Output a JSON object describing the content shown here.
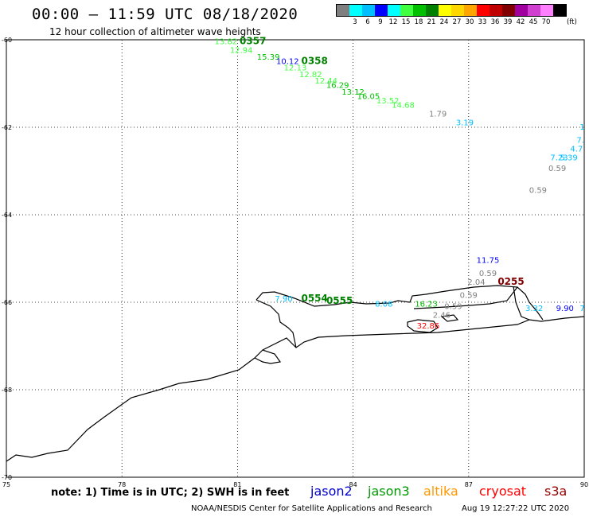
{
  "header": {
    "title": "00:00 – 11:59 UTC 08/18/2020",
    "subtitle": "12 hour collection of altimeter wave heights"
  },
  "legend": {
    "unit": "(ft)",
    "bins": [
      {
        "label": "",
        "color": "#7f7f7f"
      },
      {
        "label": "3",
        "color": "#00ffff"
      },
      {
        "label": "6",
        "color": "#00bfff"
      },
      {
        "label": "9",
        "color": "#0000ff"
      },
      {
        "label": "12",
        "color": "#00ffff"
      },
      {
        "label": "15",
        "color": "#40ff40"
      },
      {
        "label": "18",
        "color": "#00c000"
      },
      {
        "label": "21",
        "color": "#008000"
      },
      {
        "label": "24",
        "color": "#ffff00"
      },
      {
        "label": "27",
        "color": "#ffd700"
      },
      {
        "label": "30",
        "color": "#ffa500"
      },
      {
        "label": "33",
        "color": "#ff0000"
      },
      {
        "label": "36",
        "color": "#c00000"
      },
      {
        "label": "39",
        "color": "#800000"
      },
      {
        "label": "42",
        "color": "#a000a0"
      },
      {
        "label": "45",
        "color": "#d040d0"
      },
      {
        "label": "70",
        "color": "#ff80ff"
      },
      {
        "label": "",
        "color": "#000000"
      }
    ]
  },
  "map": {
    "lat_range": [
      -70,
      -60
    ],
    "lon_range": [
      75,
      90
    ],
    "lat_ticks": [
      "-60",
      "-62",
      "-64",
      "-66",
      "-68",
      "-70"
    ],
    "lon_ticks": [
      "75",
      "78",
      "81",
      "84",
      "87",
      "90"
    ],
    "observations": [
      {
        "lon": 80.7,
        "lat": -60.1,
        "text": "13.82",
        "color": "#40ff40"
      },
      {
        "lon": 81.4,
        "lat": -60.1,
        "text": "0357",
        "color": "#008000",
        "bold": true
      },
      {
        "lon": 81.1,
        "lat": -60.3,
        "text": "12.94",
        "color": "#40ff40"
      },
      {
        "lon": 81.8,
        "lat": -60.45,
        "text": "15.39",
        "color": "#00c000"
      },
      {
        "lon": 82.3,
        "lat": -60.55,
        "text": "10.12",
        "color": "#0000ff"
      },
      {
        "lon": 83.0,
        "lat": -60.55,
        "text": "0358",
        "color": "#008000",
        "bold": true
      },
      {
        "lon": 82.5,
        "lat": -60.7,
        "text": "12.13",
        "color": "#40ff40"
      },
      {
        "lon": 82.9,
        "lat": -60.85,
        "text": "12.82",
        "color": "#40ff40"
      },
      {
        "lon": 83.3,
        "lat": -61.0,
        "text": "12.44",
        "color": "#40ff40"
      },
      {
        "lon": 83.6,
        "lat": -61.1,
        "text": "16.29",
        "color": "#00c000"
      },
      {
        "lon": 84.0,
        "lat": -61.25,
        "text": "13.12",
        "color": "#00c000"
      },
      {
        "lon": 84.4,
        "lat": -61.35,
        "text": "16.05",
        "color": "#00c000"
      },
      {
        "lon": 84.9,
        "lat": -61.45,
        "text": "13.52",
        "color": "#40ff40"
      },
      {
        "lon": 85.3,
        "lat": -61.55,
        "text": "14.68",
        "color": "#40ff40"
      },
      {
        "lon": 86.2,
        "lat": -61.75,
        "text": "1.79",
        "color": "#7f7f7f"
      },
      {
        "lon": 86.9,
        "lat": -61.95,
        "text": "3.19",
        "color": "#00bfff"
      },
      {
        "lon": 89.95,
        "lat": -62.05,
        "text": "1",
        "color": "#00bfff"
      },
      {
        "lon": 89.9,
        "lat": -62.35,
        "text": "7.",
        "color": "#00bfff"
      },
      {
        "lon": 89.8,
        "lat": -62.55,
        "text": "4.7",
        "color": "#00bfff"
      },
      {
        "lon": 89.35,
        "lat": -62.75,
        "text": "7.23",
        "color": "#00bfff"
      },
      {
        "lon": 89.6,
        "lat": -62.75,
        "text": "5.39",
        "color": "#00bfff"
      },
      {
        "lon": 89.3,
        "lat": -63.0,
        "text": "0.59",
        "color": "#7f7f7f"
      },
      {
        "lon": 88.8,
        "lat": -63.5,
        "text": "0.59",
        "color": "#7f7f7f"
      },
      {
        "lon": 87.5,
        "lat": -65.1,
        "text": "11.75",
        "color": "#0000ff"
      },
      {
        "lon": 87.5,
        "lat": -65.4,
        "text": "0.59",
        "color": "#7f7f7f"
      },
      {
        "lon": 87.2,
        "lat": -65.6,
        "text": "2.04",
        "color": "#7f7f7f"
      },
      {
        "lon": 88.1,
        "lat": -65.6,
        "text": "0255",
        "color": "#800000",
        "bold": true
      },
      {
        "lon": 87.0,
        "lat": -65.9,
        "text": "0.59",
        "color": "#7f7f7f"
      },
      {
        "lon": 86.6,
        "lat": -66.15,
        "text": "0.59",
        "color": "#7f7f7f"
      },
      {
        "lon": 86.3,
        "lat": -66.35,
        "text": "2.46",
        "color": "#7f7f7f"
      },
      {
        "lon": 85.95,
        "lat": -66.6,
        "text": "32.86",
        "color": "#ff0000"
      },
      {
        "lon": 82.2,
        "lat": -65.98,
        "text": "7.90",
        "color": "#00bfff"
      },
      {
        "lon": 83.0,
        "lat": -65.98,
        "text": "0554",
        "color": "#008000",
        "bold": true
      },
      {
        "lon": 83.65,
        "lat": -66.04,
        "text": "0555",
        "color": "#008000",
        "bold": true
      },
      {
        "lon": 84.8,
        "lat": -66.1,
        "text": "8.08",
        "color": "#00bfff"
      },
      {
        "lon": 85.9,
        "lat": -66.1,
        "text": "16.23",
        "color": "#00c000"
      },
      {
        "lon": 88.7,
        "lat": -66.2,
        "text": "3.32",
        "color": "#00bfff"
      },
      {
        "lon": 89.5,
        "lat": -66.2,
        "text": "9.90",
        "color": "#0000ff"
      },
      {
        "lon": 89.95,
        "lat": -66.2,
        "text": "7",
        "color": "#00bfff"
      }
    ]
  },
  "footer": {
    "note": "note: 1) Time is in UTC; 2) SWH is in feet",
    "satellites": [
      {
        "name": "jason2",
        "color": "#0000cc"
      },
      {
        "name": "jason3",
        "color": "#009900"
      },
      {
        "name": "altika",
        "color": "#ff9900"
      },
      {
        "name": "cryosat",
        "color": "#ff0000"
      },
      {
        "name": "s3a",
        "color": "#990000"
      }
    ],
    "credit": "NOAA/NESDIS Center for Satellite Applications and Research",
    "generated": "Aug 19 12:27:22 UTC 2020"
  }
}
